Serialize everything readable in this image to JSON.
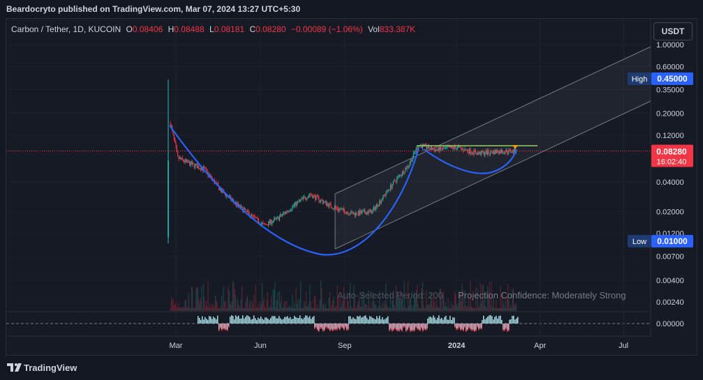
{
  "header": {
    "publisher_line": "Beardocryto published on TradingView.com, Mar 07, 2024 13:27 UTC+5:30"
  },
  "legend": {
    "symbol": "Carbon / Tether, 1D, KUCOIN",
    "o_label": "O",
    "o_value": "0.08406",
    "h_label": "H",
    "h_value": "0.08488",
    "l_label": "L",
    "l_value": "0.08181",
    "c_label": "C",
    "c_value": "0.08280",
    "change": "−0.00089 (−1.06%)",
    "vol_label": "Vol",
    "vol_value": "833.387K"
  },
  "currency_button": "USDT",
  "footer": {
    "brand": "TradingView"
  },
  "colors": {
    "up": "#26a69a",
    "down": "#f23645",
    "curve": "#2962ff",
    "channel": "#787b86",
    "resistance": "#9ccc65",
    "price_line": "#f23645"
  },
  "chart_data": {
    "type": "candlestick",
    "scale": "log",
    "symbol": "Carbon / Tether",
    "interval": "1D",
    "y_ticks": [
      "1.00000",
      "0.60000",
      "0.35000",
      "0.20000",
      "0.12000",
      "0.04000",
      "0.02000",
      "0.01200",
      "0.00700",
      "0.00400",
      "0.00240"
    ],
    "x_ticks": [
      "Mar",
      "Jun",
      "Sep",
      "2024",
      "Apr",
      "Jul"
    ],
    "high_marker": {
      "label": "High",
      "value": "0.45000"
    },
    "low_marker": {
      "label": "Low",
      "value": "0.01000"
    },
    "last_price": {
      "value": "0.08280",
      "countdown": "16:02:40"
    },
    "price_path": [
      {
        "date": "2023-02-23",
        "price": 0.16
      },
      {
        "date": "2023-03-03",
        "price": 0.07
      },
      {
        "date": "2023-03-15",
        "price": 0.062
      },
      {
        "date": "2023-04-01",
        "price": 0.054
      },
      {
        "date": "2023-04-20",
        "price": 0.032
      },
      {
        "date": "2023-05-10",
        "price": 0.022
      },
      {
        "date": "2023-06-05",
        "price": 0.0145
      },
      {
        "date": "2023-06-20",
        "price": 0.017
      },
      {
        "date": "2023-07-10",
        "price": 0.024
      },
      {
        "date": "2023-07-25",
        "price": 0.03
      },
      {
        "date": "2023-08-20",
        "price": 0.022
      },
      {
        "date": "2023-09-10",
        "price": 0.019
      },
      {
        "date": "2023-10-01",
        "price": 0.02
      },
      {
        "date": "2023-10-25",
        "price": 0.04
      },
      {
        "date": "2023-11-10",
        "price": 0.06
      },
      {
        "date": "2023-11-20",
        "price": 0.095
      },
      {
        "date": "2023-12-10",
        "price": 0.085
      },
      {
        "date": "2024-01-01",
        "price": 0.09
      },
      {
        "date": "2024-01-25",
        "price": 0.078
      },
      {
        "date": "2024-02-15",
        "price": 0.082
      },
      {
        "date": "2024-03-07",
        "price": 0.0828
      }
    ],
    "oscillator": {
      "zero_label": "0.00000",
      "annotations": [
        "Auto-Selected Period: 200",
        "Projection Confidence: Moderately Strong"
      ]
    }
  }
}
